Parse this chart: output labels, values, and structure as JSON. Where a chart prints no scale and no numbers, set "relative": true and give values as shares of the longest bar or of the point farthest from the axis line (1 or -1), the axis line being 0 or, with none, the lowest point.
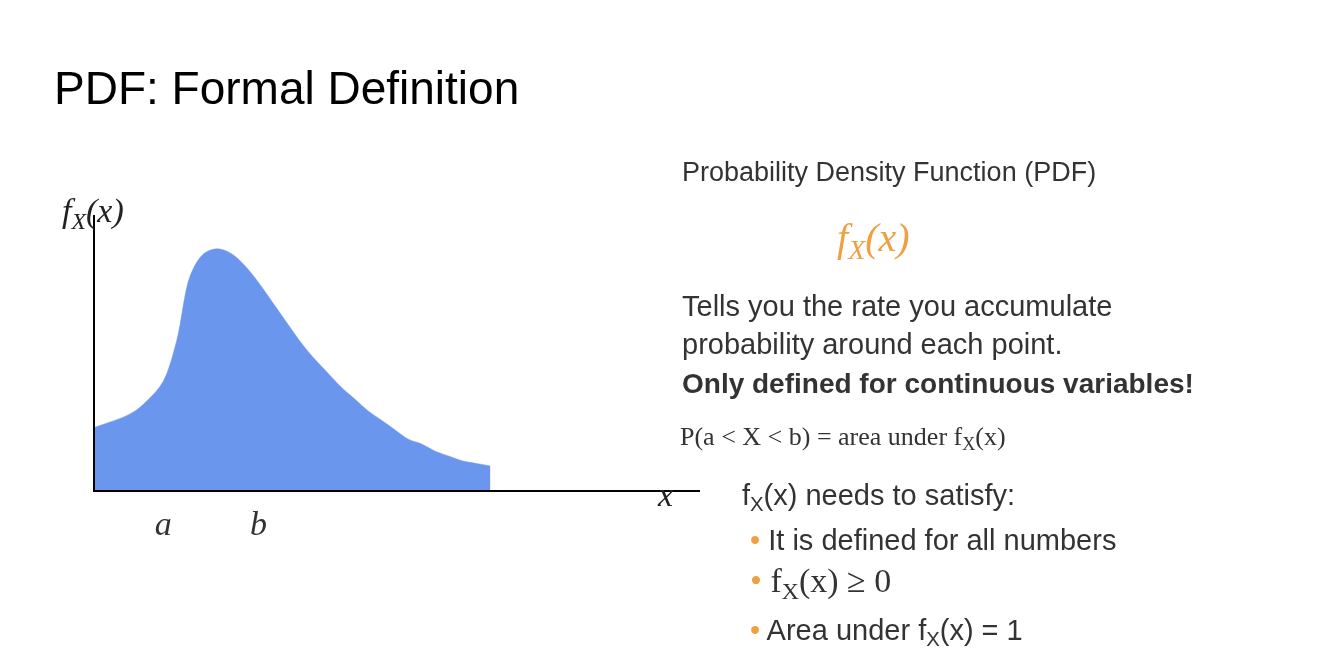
{
  "chart_data": {
    "type": "area",
    "relative": true,
    "title": "PDF: Formal Definition",
    "xlabel": "x",
    "ylabel": "f$_{X}$(x)",
    "categories": [
      null,
      null,
      null,
      null,
      null,
      "a",
      null,
      null,
      null,
      null,
      null,
      null,
      "b",
      null,
      null,
      null,
      null,
      null,
      null,
      null,
      null,
      null,
      null,
      null,
      null,
      null,
      null,
      null,
      null,
      null
    ],
    "series": [
      {
        "color": "#6a96ed",
        "values": [
          0.26,
          0.28,
          0.3,
          0.33,
          0.38,
          0.45,
          0.62,
          0.89,
          0.98,
          1,
          0.98,
          0.93,
          0.86,
          0.78,
          0.7,
          0.62,
          0.55,
          0.49,
          0.43,
          0.38,
          0.33,
          0.29,
          0.25,
          0.21,
          0.19,
          0.16,
          0.14,
          0.12,
          0.11,
          0.1
        ]
      }
    ],
    "annotations": [
      "Probability Density Function (PDF)",
      "f$_{X}$(x)",
      "Tells you the rate you accumulate probability around each point.",
      "Only defined for continuous variables!",
      "P(a < X < b) = area under f$_{X}$(x)",
      "f$_{X}$(x) needs to satisfy:",
      "• It is defined for all numbers",
      "• f$_{X}$(x) ≥ 0",
      "• Area under f$_{X}$(x) = 1"
    ]
  }
}
